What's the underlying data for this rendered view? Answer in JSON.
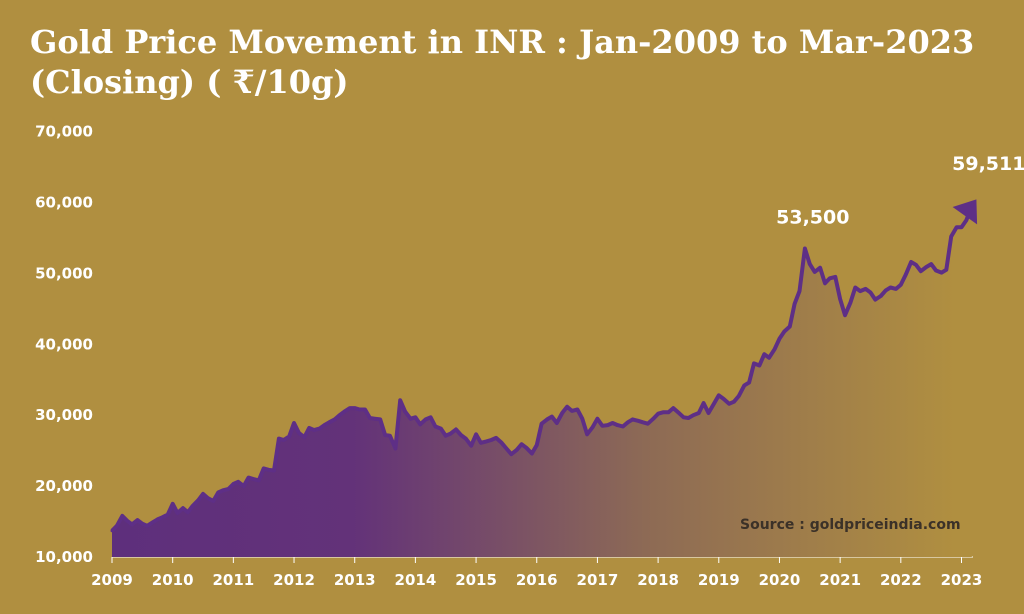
{
  "title": {
    "line1": "Gold Price Movement in INR : Jan-2009 to Mar-2023",
    "line2": "(Closing) ( ₹/10g)"
  },
  "source": "Source : goldpriceindia.com",
  "colors": {
    "background": "#b08f40",
    "line": "#5e2f86",
    "fill_start": "#5e2f7c",
    "fill_end": "#b08f40",
    "text": "#ffffff"
  },
  "chart_data": {
    "type": "area",
    "ylim": [
      10000,
      70000
    ],
    "xlim": [
      2009,
      2023.2
    ],
    "y_ticks": [
      "10,000",
      "20,000",
      "30,000",
      "40,000",
      "50,000",
      "60,000",
      "70,000"
    ],
    "y_tick_values": [
      10000,
      20000,
      30000,
      40000,
      50000,
      60000,
      70000
    ],
    "x_ticks": [
      "2009",
      "2010",
      "2011",
      "2012",
      "2013",
      "2014",
      "2015",
      "2016",
      "2017",
      "2018",
      "2019",
      "2020",
      "2021",
      "2022",
      "2023"
    ],
    "x_tick_values": [
      2009,
      2010,
      2011,
      2012,
      2013,
      2014,
      2015,
      2016,
      2017,
      2018,
      2019,
      2020,
      2021,
      2022,
      2023
    ],
    "grid": false,
    "series": [
      {
        "x": [
          2009.0,
          2009.08,
          2009.17,
          2009.25,
          2009.33,
          2009.42,
          2009.5,
          2009.58,
          2009.67,
          2009.75,
          2009.83,
          2009.92,
          2010.0,
          2010.08,
          2010.17,
          2010.25,
          2010.33,
          2010.42,
          2010.5,
          2010.58,
          2010.67,
          2010.75,
          2010.83,
          2010.92,
          2011.0,
          2011.08,
          2011.17,
          2011.25,
          2011.33,
          2011.42,
          2011.5,
          2011.58,
          2011.67,
          2011.75,
          2011.83,
          2011.92,
          2012.0,
          2012.08,
          2012.17,
          2012.25,
          2012.33,
          2012.42,
          2012.5,
          2012.58,
          2012.67,
          2012.75,
          2012.83,
          2012.92,
          2013.0,
          2013.08,
          2013.17,
          2013.25,
          2013.33,
          2013.42,
          2013.5,
          2013.58,
          2013.67,
          2013.75,
          2013.83,
          2013.92,
          2014.0,
          2014.08,
          2014.17,
          2014.25,
          2014.33,
          2014.42,
          2014.5,
          2014.58,
          2014.67,
          2014.75,
          2014.83,
          2014.92,
          2015.0,
          2015.08,
          2015.17,
          2015.25,
          2015.33,
          2015.42,
          2015.5,
          2015.58,
          2015.67,
          2015.75,
          2015.83,
          2015.92,
          2016.0,
          2016.08,
          2016.17,
          2016.25,
          2016.33,
          2016.42,
          2016.5,
          2016.58,
          2016.67,
          2016.75,
          2016.83,
          2016.92,
          2017.0,
          2017.08,
          2017.17,
          2017.25,
          2017.33,
          2017.42,
          2017.5,
          2017.58,
          2017.67,
          2017.75,
          2017.83,
          2017.92,
          2018.0,
          2018.08,
          2018.17,
          2018.25,
          2018.33,
          2018.42,
          2018.5,
          2018.58,
          2018.67,
          2018.75,
          2018.83,
          2018.92,
          2019.0,
          2019.08,
          2019.17,
          2019.25,
          2019.33,
          2019.42,
          2019.5,
          2019.58,
          2019.67,
          2019.75,
          2019.83,
          2019.92,
          2020.0,
          2020.08,
          2020.17,
          2020.25,
          2020.33,
          2020.42,
          2020.5,
          2020.58,
          2020.67,
          2020.75,
          2020.83,
          2020.92,
          2021.0,
          2021.08,
          2021.17,
          2021.25,
          2021.33,
          2021.42,
          2021.5,
          2021.58,
          2021.67,
          2021.75,
          2021.83,
          2021.92,
          2022.0,
          2022.08,
          2022.17,
          2022.25,
          2022.33,
          2022.42,
          2022.5,
          2022.58,
          2022.67,
          2022.75,
          2022.83,
          2022.92,
          2023.0,
          2023.08,
          2023.17
        ],
        "values": [
          13700,
          14400,
          15800,
          15100,
          14600,
          15200,
          14700,
          14400,
          14900,
          15300,
          15600,
          16000,
          17500,
          16200,
          16900,
          16300,
          17200,
          18000,
          18900,
          18300,
          17900,
          19100,
          19400,
          19600,
          20300,
          20600,
          20000,
          21200,
          21000,
          20800,
          22500,
          22300,
          22200,
          26700,
          26500,
          27000,
          28900,
          27500,
          26900,
          28200,
          27900,
          28100,
          28600,
          29000,
          29400,
          30000,
          30500,
          31000,
          31000,
          30800,
          30800,
          29600,
          29500,
          29400,
          27200,
          27100,
          25300,
          32100,
          30500,
          29500,
          29700,
          28700,
          29400,
          29700,
          28400,
          28100,
          27100,
          27400,
          28000,
          27200,
          26700,
          25700,
          27300,
          26100,
          26300,
          26500,
          26800,
          26100,
          25300,
          24500,
          25100,
          25900,
          25400,
          24600,
          25800,
          28800,
          29400,
          29800,
          28900,
          30300,
          31200,
          30600,
          30800,
          29500,
          27300,
          28300,
          29500,
          28500,
          28600,
          28900,
          28600,
          28400,
          29000,
          29400,
          29200,
          29000,
          28800,
          29500,
          30200,
          30400,
          30400,
          31000,
          30400,
          29700,
          29600,
          30000,
          30300,
          31700,
          30300,
          31600,
          32800,
          32300,
          31600,
          31900,
          32700,
          34200,
          34600,
          37300,
          37000,
          38600,
          38100,
          39300,
          40800,
          41800,
          42500,
          45700,
          47500,
          53500,
          51300,
          50200,
          50800,
          48600,
          49300,
          49500,
          46400,
          44100,
          45900,
          48000,
          47500,
          47800,
          47300,
          46300,
          46800,
          47600,
          48000,
          47800,
          48400,
          49800,
          51600,
          51200,
          50300,
          50900,
          51300,
          50400,
          50100,
          50500,
          55200,
          56500,
          56500,
          57500,
          59511
        ],
        "labels": [
          {
            "text": "53,500",
            "x": 2020.5,
            "value": 53500
          },
          {
            "text": "59,511",
            "x": 2023.17,
            "value": 59511
          }
        ]
      }
    ]
  }
}
